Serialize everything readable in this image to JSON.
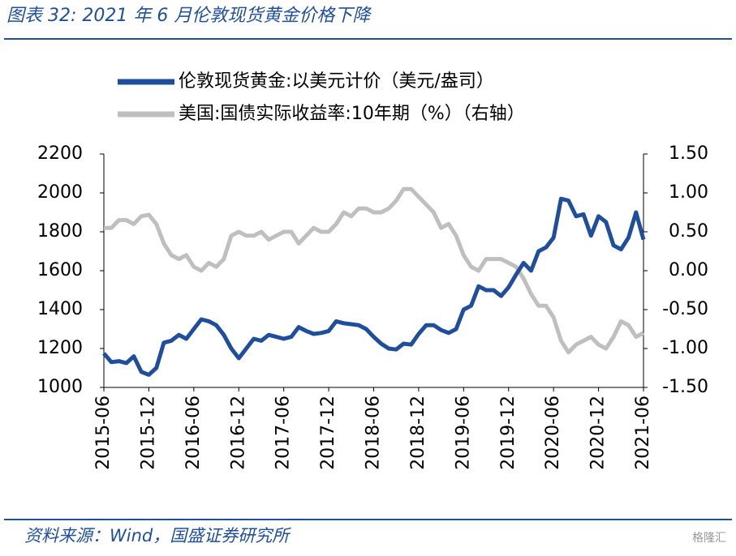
{
  "chart_data": {
    "type": "line",
    "title": "图表 32:  2021 年 6 月伦敦现货黄金价格下降",
    "source": "资料来源：Wind，国盛证券研究所",
    "watermark": "格隆汇",
    "x": [
      "2015-06",
      "2015-07",
      "2015-08",
      "2015-09",
      "2015-10",
      "2015-11",
      "2015-12",
      "2016-01",
      "2016-02",
      "2016-03",
      "2016-04",
      "2016-05",
      "2016-06",
      "2016-07",
      "2016-08",
      "2016-09",
      "2016-10",
      "2016-11",
      "2016-12",
      "2017-01",
      "2017-02",
      "2017-03",
      "2017-04",
      "2017-05",
      "2017-06",
      "2017-07",
      "2017-08",
      "2017-09",
      "2017-10",
      "2017-11",
      "2017-12",
      "2018-01",
      "2018-02",
      "2018-03",
      "2018-04",
      "2018-05",
      "2018-06",
      "2018-07",
      "2018-08",
      "2018-09",
      "2018-10",
      "2018-11",
      "2018-12",
      "2019-01",
      "2019-02",
      "2019-03",
      "2019-04",
      "2019-05",
      "2019-06",
      "2019-07",
      "2019-08",
      "2019-09",
      "2019-10",
      "2019-11",
      "2019-12",
      "2020-01",
      "2020-02",
      "2020-03",
      "2020-04",
      "2020-05",
      "2020-06",
      "2020-07",
      "2020-08",
      "2020-09",
      "2020-10",
      "2020-11",
      "2020-12",
      "2021-01",
      "2021-02",
      "2021-03",
      "2021-04",
      "2021-05",
      "2021-06"
    ],
    "xticks": [
      "2015-06",
      "2015-12",
      "2016-06",
      "2016-12",
      "2017-06",
      "2017-12",
      "2018-06",
      "2018-12",
      "2019-06",
      "2019-12",
      "2020-06",
      "2020-12",
      "2021-06"
    ],
    "series": [
      {
        "name": "美国:国债实际收益率:10年期（%）（右轴）",
        "color": "#bfbfbf",
        "axis": "y2",
        "values": [
          0.55,
          0.55,
          0.65,
          0.65,
          0.6,
          0.7,
          0.72,
          0.6,
          0.35,
          0.2,
          0.15,
          0.2,
          0.05,
          0.0,
          0.1,
          0.05,
          0.15,
          0.45,
          0.5,
          0.45,
          0.45,
          0.5,
          0.4,
          0.45,
          0.5,
          0.5,
          0.35,
          0.45,
          0.55,
          0.5,
          0.5,
          0.6,
          0.75,
          0.7,
          0.8,
          0.8,
          0.75,
          0.75,
          0.8,
          0.9,
          1.05,
          1.05,
          0.95,
          0.85,
          0.75,
          0.55,
          0.6,
          0.45,
          0.2,
          0.05,
          0.0,
          0.15,
          0.15,
          0.15,
          0.1,
          0.05,
          -0.1,
          -0.3,
          -0.45,
          -0.45,
          -0.6,
          -0.9,
          -1.05,
          -0.95,
          -0.9,
          -0.85,
          -0.95,
          -1.0,
          -0.85,
          -0.65,
          -0.7,
          -0.85,
          -0.8
        ]
      },
      {
        "name": "伦敦现货黄金:以美元计价（美元/盎司）",
        "color": "#1f4e9c",
        "values": [
          1175,
          1130,
          1135,
          1125,
          1160,
          1080,
          1065,
          1100,
          1230,
          1240,
          1270,
          1250,
          1300,
          1350,
          1340,
          1320,
          1270,
          1200,
          1150,
          1200,
          1250,
          1240,
          1270,
          1260,
          1250,
          1260,
          1310,
          1290,
          1275,
          1280,
          1290,
          1340,
          1330,
          1325,
          1320,
          1300,
          1260,
          1225,
          1200,
          1195,
          1225,
          1220,
          1275,
          1320,
          1320,
          1295,
          1280,
          1300,
          1400,
          1420,
          1520,
          1500,
          1500,
          1470,
          1515,
          1580,
          1640,
          1600,
          1700,
          1720,
          1770,
          1970,
          1960,
          1880,
          1890,
          1780,
          1880,
          1850,
          1730,
          1710,
          1770,
          1900,
          1760
        ]
      }
    ],
    "ylim": [
      1000,
      2200
    ],
    "yticks": [
      1000,
      1200,
      1400,
      1600,
      1800,
      2000,
      2200
    ],
    "y2lim": [
      -1.5,
      1.5
    ],
    "y2ticks": [
      {
        "value": -1.5,
        "label": "-1.50"
      },
      {
        "value": -1.0,
        "label": "-1.00"
      },
      {
        "value": -0.5,
        "label": "-0.50"
      },
      {
        "value": 0,
        "label": "0.00"
      },
      {
        "value": 0.5,
        "label": "0.50"
      },
      {
        "value": 1.0,
        "label": "1.00"
      },
      {
        "value": 1.5,
        "label": "1.50"
      }
    ]
  }
}
